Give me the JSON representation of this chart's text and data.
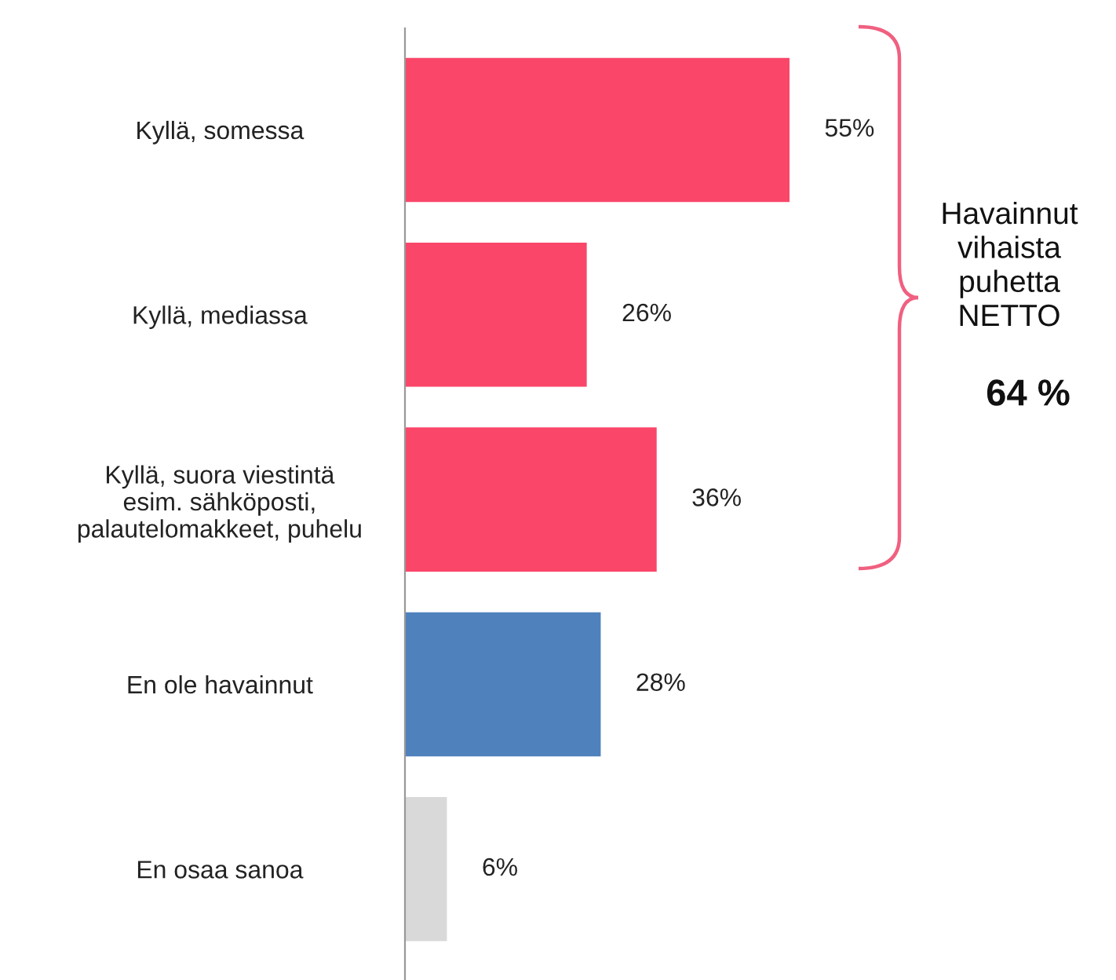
{
  "chart_data": {
    "type": "bar",
    "orientation": "horizontal",
    "categories": [
      "Kyllä, somessa",
      "Kyllä, mediassa",
      "Kyllä, suora viestintä\nesim. sähköposti,\npalautelomakkeet, puhelu",
      "En ole havainnut",
      "En osaa sanoa"
    ],
    "values": [
      55,
      26,
      36,
      28,
      6
    ],
    "colors": [
      "#fa4669",
      "#fa4669",
      "#fa4669",
      "#4f81bd",
      "#d9d9d9"
    ],
    "value_labels": [
      "55%",
      "26%",
      "36%",
      "28%",
      "6%"
    ],
    "annotations": [
      "Havainnut\nvihaista\npuhetta\nNETTO",
      "64 %"
    ],
    "grid": false,
    "legend": false
  }
}
